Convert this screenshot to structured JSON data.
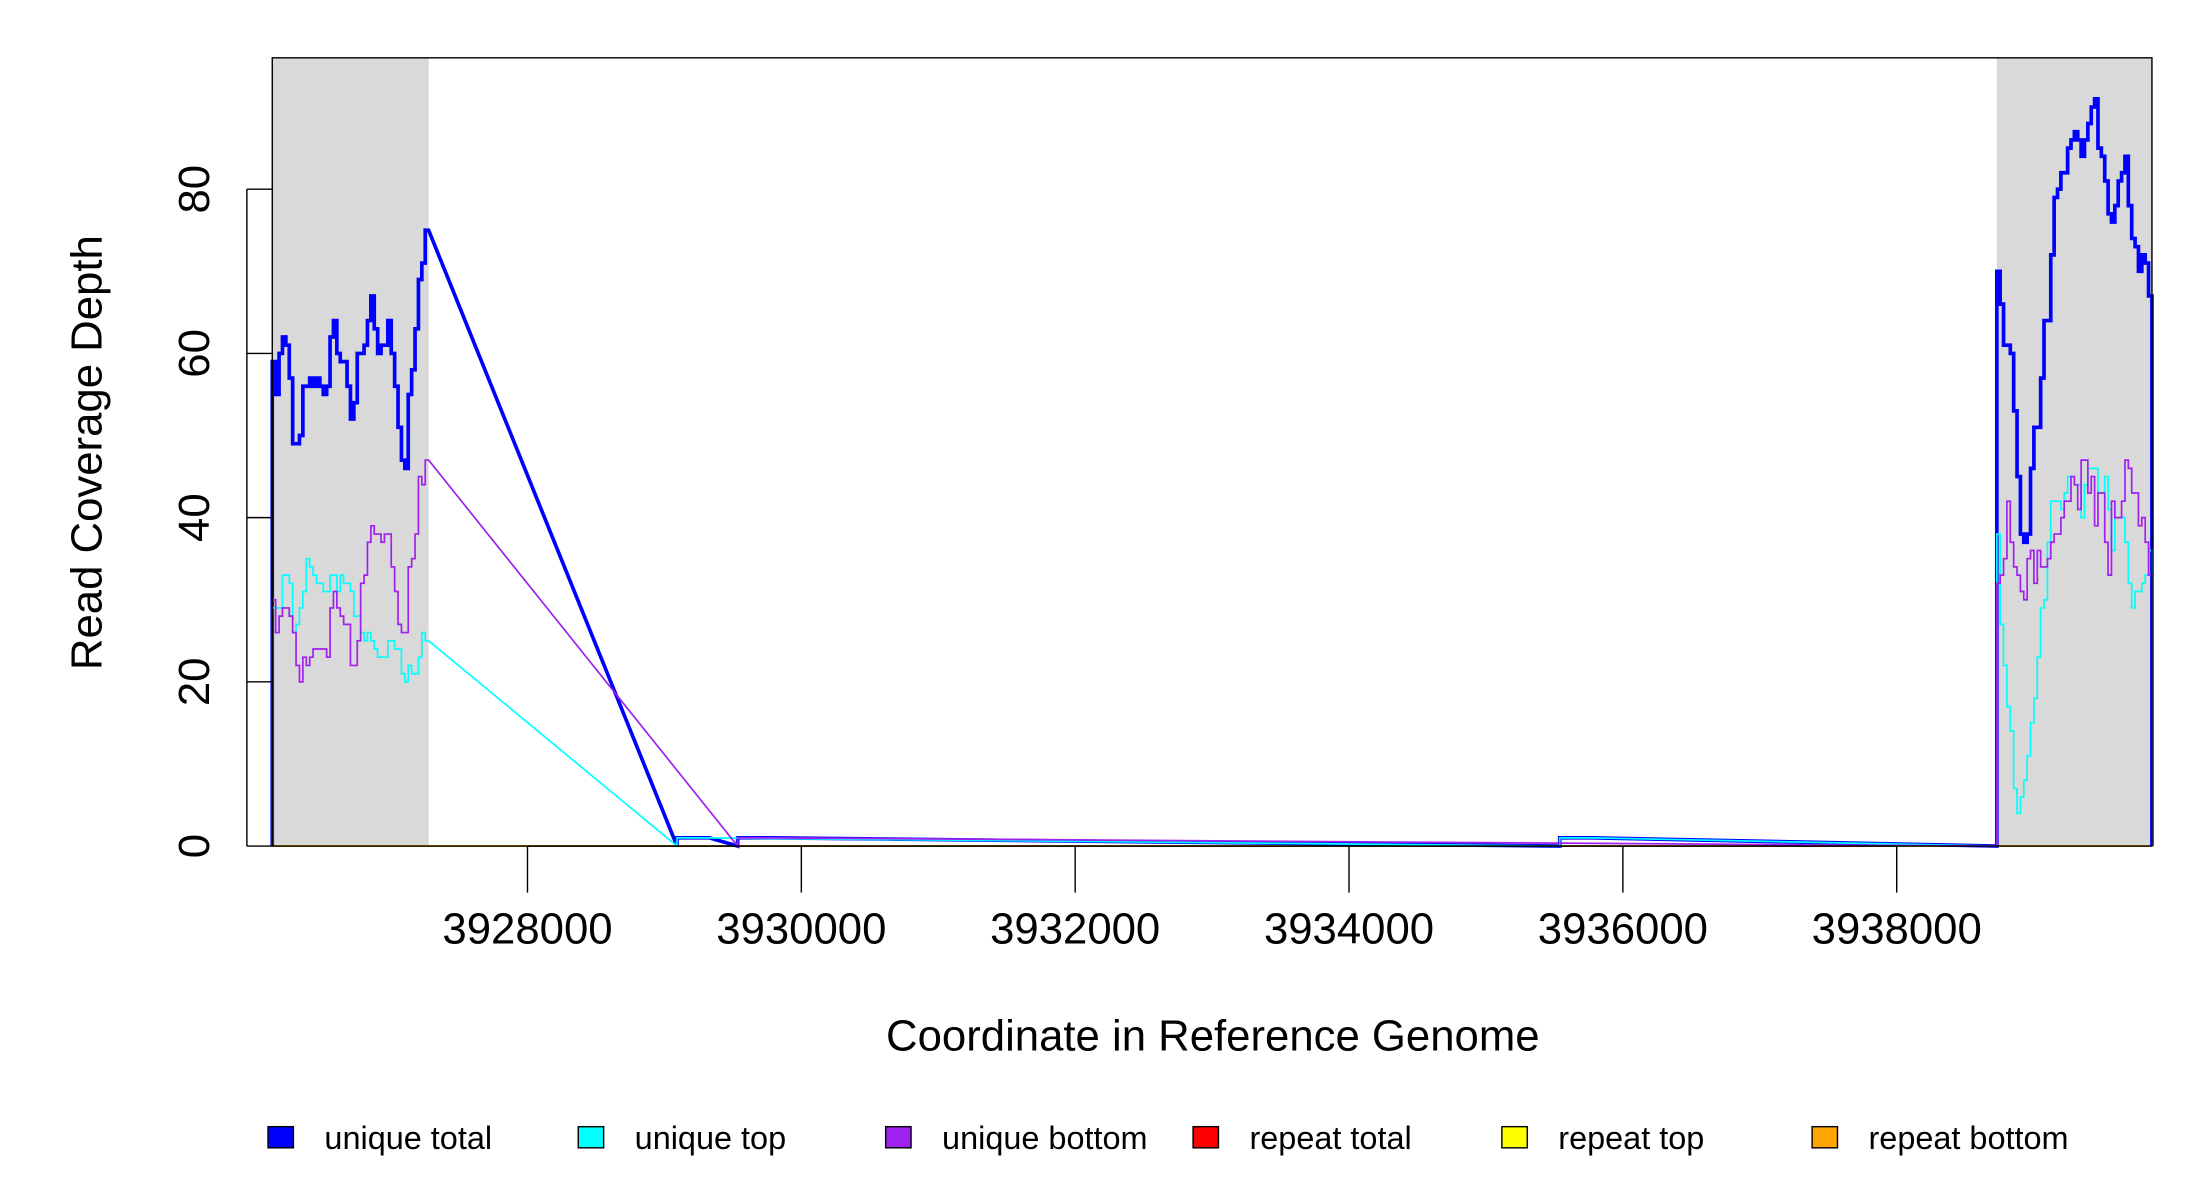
{
  "chart_data": {
    "type": "line",
    "step": true,
    "xlabel": "Coordinate in Reference Genome",
    "ylabel": "Read Coverage Depth",
    "xlim": [
      3926136,
      3939864
    ],
    "ylim": [
      0,
      96
    ],
    "x_ticks": [
      3928000,
      3930000,
      3932000,
      3934000,
      3936000,
      3938000
    ],
    "x_tick_labels": [
      "3928000",
      "3930000",
      "3932000",
      "3934000",
      "3936000",
      "3938000"
    ],
    "y_ticks": [
      0,
      20,
      40,
      60,
      80
    ],
    "y_tick_labels": [
      "0",
      "20",
      "40",
      "60",
      "80"
    ],
    "grid": false,
    "legend_position": "bottom",
    "shaded_regions": [
      {
        "start": 3926136,
        "end": 3927278,
        "color": "#D9D9D9"
      },
      {
        "start": 3938731,
        "end": 3939864,
        "color": "#D9D9D9"
      }
    ],
    "series": [
      {
        "name": "repeat total",
        "color": "#FF0000",
        "regions": []
      },
      {
        "name": "repeat top",
        "color": "#FFFF00",
        "regions": []
      },
      {
        "name": "repeat bottom",
        "color": "#FFA500",
        "regions": []
      },
      {
        "name": "unique total",
        "color": "#0000FF",
        "regions": [
          {
            "start": 3926136,
            "end": 3927278,
            "values": [
              59,
              55,
              60,
              62,
              61,
              57,
              49,
              49,
              50,
              56,
              56,
              57,
              56,
              57,
              56,
              55,
              56,
              62,
              64,
              60,
              59,
              59,
              56,
              52,
              54,
              60,
              60,
              61,
              64,
              67,
              63,
              60,
              61,
              61,
              64,
              60,
              56,
              51,
              47,
              46,
              55,
              58,
              63,
              69,
              71,
              75
            ]
          },
          {
            "start": 3929092,
            "end": 3929329,
            "values": [
              1
            ]
          },
          {
            "start": 3929535,
            "end": 3929771,
            "values": [
              1
            ]
          },
          {
            "start": 3935539,
            "end": 3935776,
            "values": [
              1
            ]
          },
          {
            "start": 3938731,
            "end": 3939864,
            "values": [
              70,
              66,
              61,
              61,
              60,
              53,
              45,
              38,
              37,
              38,
              46,
              51,
              51,
              57,
              64,
              64,
              72,
              79,
              80,
              82,
              82,
              85,
              86,
              87,
              86,
              84,
              86,
              88,
              90,
              91,
              85,
              84,
              81,
              77,
              76,
              78,
              81,
              82,
              84,
              78,
              74,
              73,
              70,
              72,
              71,
              67
            ]
          }
        ]
      },
      {
        "name": "unique top",
        "color": "#00FFFF",
        "regions": [
          {
            "start": 3926136,
            "end": 3927278,
            "values": [
              29,
              29,
              29,
              33,
              33,
              32,
              26,
              27,
              29,
              31,
              35,
              34,
              33,
              32,
              32,
              31,
              31,
              33,
              33,
              31,
              33,
              32,
              32,
              31,
              28,
              28,
              26,
              25,
              26,
              25,
              24,
              23,
              23,
              23,
              25,
              25,
              24,
              24,
              21,
              20,
              22,
              21,
              21,
              23,
              26,
              25
            ]
          },
          {
            "start": 3929092,
            "end": 3929329,
            "values": [
              1
            ]
          },
          {
            "start": 3935539,
            "end": 3935776,
            "values": [
              1
            ]
          },
          {
            "start": 3938731,
            "end": 3939864,
            "values": [
              38,
              27,
              22,
              17,
              14,
              7,
              4,
              6,
              8,
              11,
              15,
              18,
              23,
              29,
              30,
              37,
              42,
              42,
              42,
              41,
              43,
              45,
              45,
              44,
              44,
              40,
              44,
              46,
              46,
              46,
              43,
              43,
              45,
              41,
              36,
              40,
              40,
              40,
              37,
              32,
              29,
              31,
              31,
              32,
              33,
              36
            ]
          }
        ]
      },
      {
        "name": "unique bottom",
        "color": "#A020F0",
        "regions": [
          {
            "start": 3926136,
            "end": 3927278,
            "values": [
              30,
              26,
              28,
              29,
              29,
              28,
              26,
              22,
              20,
              23,
              22,
              23,
              24,
              24,
              24,
              24,
              23,
              29,
              31,
              29,
              28,
              27,
              27,
              22,
              22,
              25,
              32,
              33,
              37,
              39,
              38,
              38,
              37,
              38,
              38,
              34,
              31,
              27,
              26,
              26,
              34,
              35,
              38,
              45,
              44,
              47
            ]
          },
          {
            "start": 3929535,
            "end": 3929771,
            "values": [
              1
            ]
          },
          {
            "start": 3938731,
            "end": 3939864,
            "values": [
              32,
              33,
              35,
              42,
              37,
              34,
              33,
              31,
              30,
              35,
              36,
              32,
              36,
              34,
              34,
              35,
              37,
              38,
              38,
              40,
              42,
              42,
              45,
              44,
              41,
              47,
              47,
              43,
              45,
              39,
              43,
              43,
              37,
              33,
              42,
              40,
              40,
              42,
              47,
              46,
              43,
              43,
              39,
              40,
              37,
              33
            ]
          }
        ]
      }
    ]
  }
}
